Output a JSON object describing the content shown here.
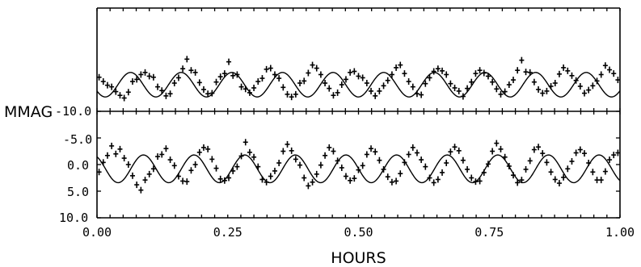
{
  "chart_data": {
    "type": "scatter",
    "xlabel": "HOURS",
    "ylabel": "MMAG",
    "xlim": [
      0,
      1
    ],
    "x_ticks": [
      "0.00",
      "0.25",
      "0.50",
      "0.75",
      "1.00"
    ],
    "y_ticks": [
      "-10.0",
      "-5.0",
      "0.0",
      "5.0",
      "10.0"
    ],
    "ylim_lower_panel": [
      -10,
      10
    ],
    "y_inverted": true,
    "panels": [
      {
        "name": "upper",
        "fit_curve": {
          "period_hours": 0.0968,
          "amplitude_mmag": 2.3,
          "phase_hours": 0.0158,
          "offset_mmag": -5.0
        },
        "points": [
          [
            0.004,
            -6.4
          ],
          [
            0.012,
            -5.6
          ],
          [
            0.02,
            -4.9
          ],
          [
            0.028,
            -4.6
          ],
          [
            0.036,
            -3.7
          ],
          [
            0.044,
            -3.0
          ],
          [
            0.052,
            -2.5
          ],
          [
            0.06,
            -3.6
          ],
          [
            0.068,
            -5.6
          ],
          [
            0.076,
            -6.0
          ],
          [
            0.084,
            -6.9
          ],
          [
            0.092,
            -7.3
          ],
          [
            0.1,
            -6.6
          ],
          [
            0.108,
            -6.4
          ],
          [
            0.116,
            -4.6
          ],
          [
            0.124,
            -3.9
          ],
          [
            0.132,
            -2.9
          ],
          [
            0.14,
            -3.3
          ],
          [
            0.148,
            -5.3
          ],
          [
            0.156,
            -6.3
          ],
          [
            0.164,
            -8.0
          ],
          [
            0.172,
            -9.8
          ],
          [
            0.18,
            -7.7
          ],
          [
            0.188,
            -7.3
          ],
          [
            0.196,
            -5.4
          ],
          [
            0.204,
            -4.1
          ],
          [
            0.212,
            -3.3
          ],
          [
            0.22,
            -3.4
          ],
          [
            0.228,
            -5.5
          ],
          [
            0.236,
            -6.5
          ],
          [
            0.244,
            -7.1
          ],
          [
            0.252,
            -9.3
          ],
          [
            0.26,
            -6.7
          ],
          [
            0.268,
            -6.9
          ],
          [
            0.276,
            -4.6
          ],
          [
            0.284,
            -4.2
          ],
          [
            0.292,
            -3.5
          ],
          [
            0.3,
            -4.4
          ],
          [
            0.308,
            -5.6
          ],
          [
            0.316,
            -6.2
          ],
          [
            0.324,
            -7.9
          ],
          [
            0.332,
            -8.1
          ],
          [
            0.34,
            -6.9
          ],
          [
            0.348,
            -6.2
          ],
          [
            0.356,
            -4.5
          ],
          [
            0.364,
            -3.2
          ],
          [
            0.372,
            -2.7
          ],
          [
            0.38,
            -3.2
          ],
          [
            0.388,
            -5.3
          ],
          [
            0.396,
            -5.7
          ],
          [
            0.404,
            -7.2
          ],
          [
            0.412,
            -8.7
          ],
          [
            0.42,
            -8.1
          ],
          [
            0.428,
            -6.9
          ],
          [
            0.436,
            -5.3
          ],
          [
            0.444,
            -4.3
          ],
          [
            0.452,
            -3.0
          ],
          [
            0.46,
            -3.5
          ],
          [
            0.468,
            -5.0
          ],
          [
            0.476,
            -6.0
          ],
          [
            0.484,
            -7.3
          ],
          [
            0.492,
            -7.5
          ],
          [
            0.5,
            -6.6
          ],
          [
            0.508,
            -6.3
          ],
          [
            0.516,
            -5.3
          ],
          [
            0.524,
            -3.8
          ],
          [
            0.532,
            -2.9
          ],
          [
            0.54,
            -3.8
          ],
          [
            0.548,
            -4.8
          ],
          [
            0.556,
            -5.8
          ],
          [
            0.564,
            -6.9
          ],
          [
            0.572,
            -8.2
          ],
          [
            0.58,
            -8.7
          ],
          [
            0.588,
            -7.1
          ],
          [
            0.596,
            -5.6
          ],
          [
            0.604,
            -4.6
          ],
          [
            0.612,
            -3.3
          ],
          [
            0.62,
            -3.1
          ],
          [
            0.628,
            -5.2
          ],
          [
            0.636,
            -6.3
          ],
          [
            0.644,
            -7.5
          ],
          [
            0.652,
            -8.0
          ],
          [
            0.66,
            -7.6
          ],
          [
            0.668,
            -6.9
          ],
          [
            0.676,
            -5.2
          ],
          [
            0.684,
            -4.4
          ],
          [
            0.692,
            -3.8
          ],
          [
            0.7,
            -2.8
          ],
          [
            0.708,
            -4.3
          ],
          [
            0.716,
            -5.5
          ],
          [
            0.724,
            -7.1
          ],
          [
            0.732,
            -7.7
          ],
          [
            0.74,
            -7.2
          ],
          [
            0.748,
            -6.6
          ],
          [
            0.756,
            -5.5
          ],
          [
            0.764,
            -4.2
          ],
          [
            0.772,
            -3.2
          ],
          [
            0.78,
            -3.7
          ],
          [
            0.788,
            -5.0
          ],
          [
            0.796,
            -5.9
          ],
          [
            0.804,
            -7.7
          ],
          [
            0.812,
            -9.6
          ],
          [
            0.82,
            -7.4
          ],
          [
            0.828,
            -7.3
          ],
          [
            0.836,
            -5.5
          ],
          [
            0.844,
            -4.1
          ],
          [
            0.852,
            -3.4
          ],
          [
            0.86,
            -3.8
          ],
          [
            0.868,
            -4.7
          ],
          [
            0.876,
            -5.3
          ],
          [
            0.884,
            -7.0
          ],
          [
            0.892,
            -8.2
          ],
          [
            0.9,
            -7.6
          ],
          [
            0.908,
            -6.7
          ],
          [
            0.916,
            -5.8
          ],
          [
            0.924,
            -4.7
          ],
          [
            0.932,
            -3.4
          ],
          [
            0.94,
            -4.0
          ],
          [
            0.948,
            -4.8
          ],
          [
            0.956,
            -5.7
          ],
          [
            0.964,
            -6.9
          ],
          [
            0.972,
            -8.6
          ],
          [
            0.98,
            -7.8
          ],
          [
            0.988,
            -7.1
          ],
          [
            0.996,
            -5.9
          ]
        ]
      },
      {
        "name": "lower",
        "fit_curve": {
          "period_hours": 0.0968,
          "amplitude_mmag": 2.6,
          "phase_hours": 0.0404,
          "offset_mmag": 0.8
        },
        "points": [
          [
            0.004,
            1.4
          ],
          [
            0.012,
            -0.4
          ],
          [
            0.02,
            -1.7
          ],
          [
            0.028,
            -3.5
          ],
          [
            0.036,
            -2.0
          ],
          [
            0.044,
            -2.9
          ],
          [
            0.052,
            -1.2
          ],
          [
            0.06,
            0.0
          ],
          [
            0.068,
            2.1
          ],
          [
            0.076,
            3.8
          ],
          [
            0.084,
            4.8
          ],
          [
            0.092,
            2.9
          ],
          [
            0.1,
            1.8
          ],
          [
            0.108,
            0.8
          ],
          [
            0.116,
            -1.5
          ],
          [
            0.124,
            -1.9
          ],
          [
            0.132,
            -3.0
          ],
          [
            0.14,
            -0.9
          ],
          [
            0.148,
            0.2
          ],
          [
            0.156,
            2.2
          ],
          [
            0.164,
            3.1
          ],
          [
            0.172,
            3.2
          ],
          [
            0.18,
            1.1
          ],
          [
            0.188,
            0.0
          ],
          [
            0.196,
            -2.3
          ],
          [
            0.204,
            -3.2
          ],
          [
            0.212,
            -2.9
          ],
          [
            0.22,
            -1.0
          ],
          [
            0.228,
            0.7
          ],
          [
            0.236,
            2.7
          ],
          [
            0.244,
            3.0
          ],
          [
            0.252,
            2.5
          ],
          [
            0.26,
            1.2
          ],
          [
            0.268,
            0.4
          ],
          [
            0.276,
            -1.6
          ],
          [
            0.284,
            -4.2
          ],
          [
            0.292,
            -2.3
          ],
          [
            0.3,
            -1.4
          ],
          [
            0.308,
            0.4
          ],
          [
            0.316,
            2.8
          ],
          [
            0.324,
            3.3
          ],
          [
            0.332,
            2.2
          ],
          [
            0.34,
            1.2
          ],
          [
            0.348,
            -0.3
          ],
          [
            0.356,
            -2.5
          ],
          [
            0.364,
            -3.8
          ],
          [
            0.372,
            -2.6
          ],
          [
            0.38,
            -1.0
          ],
          [
            0.388,
            0.1
          ],
          [
            0.396,
            2.5
          ],
          [
            0.404,
            4.0
          ],
          [
            0.412,
            3.3
          ],
          [
            0.42,
            1.8
          ],
          [
            0.428,
            0.1
          ],
          [
            0.436,
            -1.7
          ],
          [
            0.444,
            -3.2
          ],
          [
            0.452,
            -2.5
          ],
          [
            0.46,
            -0.7
          ],
          [
            0.468,
            0.6
          ],
          [
            0.476,
            2.2
          ],
          [
            0.484,
            3.0
          ],
          [
            0.492,
            2.6
          ],
          [
            0.5,
            1.0
          ],
          [
            0.508,
            0.2
          ],
          [
            0.516,
            -1.9
          ],
          [
            0.524,
            -3.0
          ],
          [
            0.532,
            -2.4
          ],
          [
            0.54,
            -0.8
          ],
          [
            0.548,
            0.9
          ],
          [
            0.556,
            2.3
          ],
          [
            0.564,
            3.3
          ],
          [
            0.572,
            3.1
          ],
          [
            0.58,
            1.7
          ],
          [
            0.588,
            -0.4
          ],
          [
            0.596,
            -1.9
          ],
          [
            0.604,
            -3.2
          ],
          [
            0.612,
            -2.2
          ],
          [
            0.62,
            -0.9
          ],
          [
            0.628,
            0.4
          ],
          [
            0.636,
            2.5
          ],
          [
            0.644,
            3.4
          ],
          [
            0.652,
            2.8
          ],
          [
            0.66,
            1.5
          ],
          [
            0.668,
            -0.3
          ],
          [
            0.676,
            -2.4
          ],
          [
            0.684,
            -3.3
          ],
          [
            0.692,
            -2.6
          ],
          [
            0.7,
            -0.8
          ],
          [
            0.708,
            0.9
          ],
          [
            0.716,
            2.5
          ],
          [
            0.724,
            3.2
          ],
          [
            0.732,
            3.1
          ],
          [
            0.74,
            1.5
          ],
          [
            0.748,
            -0.1
          ],
          [
            0.756,
            -2.5
          ],
          [
            0.764,
            -4.0
          ],
          [
            0.772,
            -2.9
          ],
          [
            0.78,
            -1.4
          ],
          [
            0.788,
            0.3
          ],
          [
            0.796,
            2.0
          ],
          [
            0.804,
            3.4
          ],
          [
            0.812,
            2.9
          ],
          [
            0.82,
            0.9
          ],
          [
            0.828,
            -0.7
          ],
          [
            0.836,
            -2.8
          ],
          [
            0.844,
            -3.3
          ],
          [
            0.852,
            -2.1
          ],
          [
            0.86,
            -0.4
          ],
          [
            0.868,
            1.4
          ],
          [
            0.876,
            2.8
          ],
          [
            0.884,
            3.5
          ],
          [
            0.892,
            2.4
          ],
          [
            0.9,
            0.8
          ],
          [
            0.908,
            -0.6
          ],
          [
            0.916,
            -2.2
          ],
          [
            0.924,
            -2.8
          ],
          [
            0.932,
            -2.1
          ],
          [
            0.94,
            -0.3
          ],
          [
            0.948,
            1.4
          ],
          [
            0.956,
            2.9
          ],
          [
            0.964,
            2.9
          ],
          [
            0.972,
            1.3
          ],
          [
            0.98,
            -0.9
          ],
          [
            0.988,
            -1.8
          ],
          [
            0.996,
            -2.2
          ]
        ]
      }
    ]
  }
}
